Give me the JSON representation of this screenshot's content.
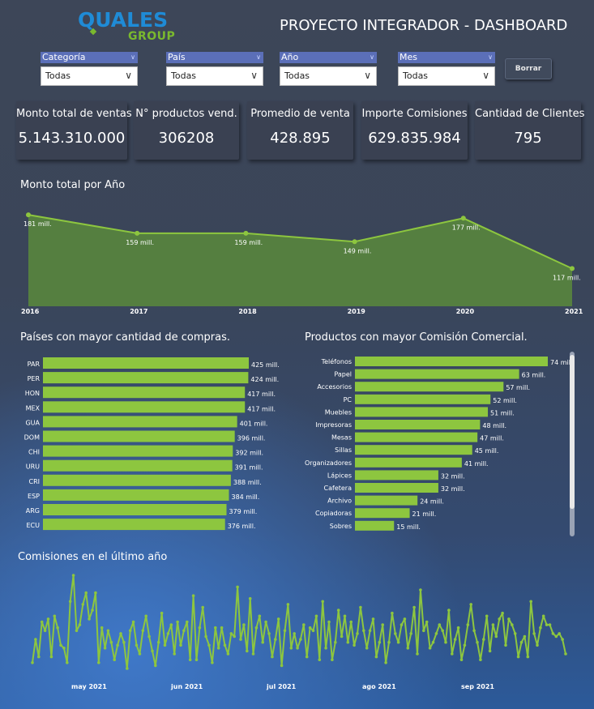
{
  "header": {
    "logo_text": "QUALES",
    "logo_sub": "GROUP",
    "title": "PROYECTO INTEGRADOR - DASHBOARD"
  },
  "filters": [
    {
      "label": "Categoría",
      "value": "Todas"
    },
    {
      "label": "País",
      "value": "Todas"
    },
    {
      "label": "Año",
      "value": "Todas"
    },
    {
      "label": "Mes",
      "value": "Todas"
    }
  ],
  "reset_button": "Borrar",
  "kpis": [
    {
      "label": "Monto total de ventas",
      "value": "5.143.310.000"
    },
    {
      "label": "N° productos vend.",
      "value": "306208"
    },
    {
      "label": "Promedio de venta",
      "value": "428.895"
    },
    {
      "label": "Importe Comisiones",
      "value": "629.835.984"
    },
    {
      "label": "Cantidad de Clientes",
      "value": "795"
    }
  ],
  "colors": {
    "accent": "#8dc63f",
    "area_fill": "#5a8a3c",
    "card_bg": "#3a4152"
  },
  "chart_data": [
    {
      "type": "area",
      "title": "Monto total por Año",
      "categories": [
        "2016",
        "2017",
        "2018",
        "2019",
        "2020",
        "2021"
      ],
      "values": [
        181,
        159,
        159,
        149,
        177,
        117
      ],
      "data_labels": [
        "181 mill.",
        "159 mill.",
        "159 mill.",
        "149 mill.",
        "177 mill.",
        "117 mill."
      ],
      "unit": "mill."
    },
    {
      "type": "bar",
      "orientation": "horizontal",
      "title": "Países con mayor cantidad de compras.",
      "categories": [
        "PAR",
        "PER",
        "HON",
        "MEX",
        "GUA",
        "DOM",
        "CHI",
        "URU",
        "CRI",
        "ESP",
        "ARG",
        "ECU"
      ],
      "values": [
        425,
        424,
        417,
        417,
        401,
        396,
        392,
        391,
        388,
        384,
        379,
        376
      ],
      "data_labels": [
        "425 mill.",
        "424 mill.",
        "417 mill.",
        "417 mill.",
        "401 mill.",
        "396 mill.",
        "392 mill.",
        "391 mill.",
        "388 mill.",
        "384 mill.",
        "379 mill.",
        "376 mill."
      ],
      "unit": "mill."
    },
    {
      "type": "bar",
      "orientation": "horizontal",
      "title": "Productos con mayor Comisión Comercial.",
      "categories": [
        "Teléfonos",
        "Papel",
        "Accesorios",
        "PC",
        "Muebles",
        "Impresoras",
        "Mesas",
        "Sillas",
        "Organizadores",
        "Lápices",
        "Cafetera",
        "Archivo",
        "Copiadoras",
        "Sobres"
      ],
      "values": [
        74,
        63,
        57,
        52,
        51,
        48,
        47,
        45,
        41,
        32,
        32,
        24,
        21,
        15
      ],
      "data_labels": [
        "74 mill.",
        "63 mill.",
        "57 mill.",
        "52 mill.",
        "51 mill.",
        "48 mill.",
        "47 mill.",
        "45 mill.",
        "41 mill.",
        "32 mill.",
        "32 mill.",
        "24 mill.",
        "21 mill.",
        "15 mill."
      ],
      "unit": "mill."
    },
    {
      "type": "line",
      "title": "Comisiones en el último año",
      "x_tick_labels": [
        "may 2021",
        "jun 2021",
        "jul 2021",
        "ago 2021",
        "sep 2021"
      ],
      "values": [
        5.0,
        5.8,
        5.2,
        6.4,
        6.1,
        6.5,
        5.2,
        6.6,
        6.2,
        5.6,
        5.5,
        5.0,
        7.1,
        8.0,
        6.1,
        6.3,
        7.0,
        7.4,
        6.5,
        6.8,
        7.4,
        5.0,
        6.2,
        5.5,
        6.1,
        5.7,
        5.1,
        5.6,
        6.0,
        5.7,
        4.8,
        6.1,
        6.4,
        5.6,
        5.3,
        6.1,
        6.6,
        5.9,
        5.4,
        4.9,
        5.7,
        6.7,
        5.6,
        6.0,
        6.3,
        5.3,
        6.4,
        5.6,
        6.1,
        6.4,
        5.1,
        7.3,
        5.1,
        6.2,
        6.9,
        5.9,
        5.6,
        5.0,
        6.2,
        5.5,
        6.2,
        5.6,
        5.3,
        6.0,
        5.9,
        7.6,
        5.8,
        6.3,
        5.4,
        7.2,
        5.3,
        6.2,
        6.6,
        5.7,
        6.4,
        6.0,
        5.2,
        5.8,
        6.5,
        4.9,
        6.1,
        7.0,
        5.5,
        6.0,
        5.5,
        5.8,
        6.3,
        5.2,
        6.2,
        6.1,
        6.6,
        5.1,
        7.1,
        5.5,
        6.4,
        5.1,
        5.7,
        6.8,
        5.9,
        6.6,
        5.7,
        6.4,
        5.6,
        6.0,
        6.9,
        6.1,
        5.5,
        6.1,
        6.5,
        5.2,
        5.7,
        6.3,
        5.0,
        5.7,
        6.7,
        6.0,
        5.7,
        6.3,
        6.5,
        5.5,
        6.0,
        6.9,
        5.3,
        7.5,
        6.1,
        6.4,
        5.5,
        5.7,
        6.0,
        6.3,
        6.1,
        5.7,
        6.8,
        5.3,
        5.8,
        6.2,
        5.1,
        5.6,
        6.3,
        7.0,
        6.1,
        5.7,
        5.1,
        5.8,
        6.6,
        5.4,
        6.3,
        5.9,
        6.5,
        6.7,
        5.6,
        6.5,
        6.3,
        6.0,
        5.2,
        5.7,
        5.9,
        5.2,
        7.1,
        6.0,
        5.6,
        6.2,
        6.6,
        6.3,
        6.3,
        6.0,
        5.9,
        6.0,
        5.8,
        5.3
      ]
    }
  ]
}
